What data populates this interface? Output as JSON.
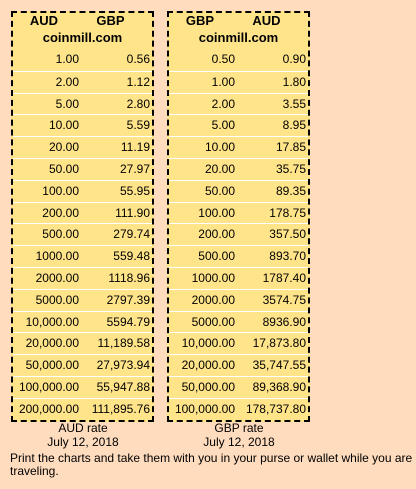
{
  "left_chart": {
    "col1_header": "AUD",
    "col2_header": "GBP",
    "site": "coinmill.com",
    "rows": [
      [
        "1.00",
        "0.56"
      ],
      [
        "2.00",
        "1.12"
      ],
      [
        "5.00",
        "2.80"
      ],
      [
        "10.00",
        "5.59"
      ],
      [
        "20.00",
        "11.19"
      ],
      [
        "50.00",
        "27.97"
      ],
      [
        "100.00",
        "55.95"
      ],
      [
        "200.00",
        "111.90"
      ],
      [
        "500.00",
        "279.74"
      ],
      [
        "1000.00",
        "559.48"
      ],
      [
        "2000.00",
        "1118.96"
      ],
      [
        "5000.00",
        "2797.39"
      ],
      [
        "10,000.00",
        "5594.79"
      ],
      [
        "20,000.00",
        "11,189.58"
      ],
      [
        "50,000.00",
        "27,973.94"
      ],
      [
        "100,000.00",
        "55,947.88"
      ],
      [
        "200,000.00",
        "111,895.76"
      ]
    ],
    "caption_line1": "AUD rate",
    "caption_line2": "July 12, 2018"
  },
  "right_chart": {
    "col1_header": "GBP",
    "col2_header": "AUD",
    "site": "coinmill.com",
    "rows": [
      [
        "0.50",
        "0.90"
      ],
      [
        "1.00",
        "1.80"
      ],
      [
        "2.00",
        "3.55"
      ],
      [
        "5.00",
        "8.95"
      ],
      [
        "10.00",
        "17.85"
      ],
      [
        "20.00",
        "35.75"
      ],
      [
        "50.00",
        "89.35"
      ],
      [
        "100.00",
        "178.75"
      ],
      [
        "200.00",
        "357.50"
      ],
      [
        "500.00",
        "893.70"
      ],
      [
        "1000.00",
        "1787.40"
      ],
      [
        "2000.00",
        "3574.75"
      ],
      [
        "5000.00",
        "8936.90"
      ],
      [
        "10,000.00",
        "17,873.80"
      ],
      [
        "20,000.00",
        "35,747.55"
      ],
      [
        "50,000.00",
        "89,368.90"
      ],
      [
        "100,000.00",
        "178,737.80"
      ]
    ],
    "caption_line1": "GBP rate",
    "caption_line2": "July 12, 2018"
  },
  "footer_text": "Print the charts and take them with you in your purse or wallet while you are traveling.",
  "colors": {
    "page_background": "#ffdcbe",
    "chart_background": "#ffe48a"
  }
}
